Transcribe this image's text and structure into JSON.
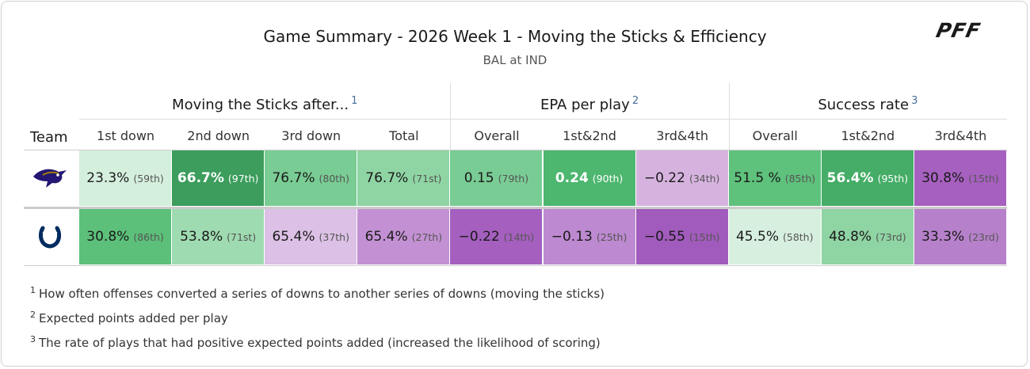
{
  "header": {
    "title": "Game Summary - 2026 Week 1 - Moving the Sticks & Efficiency",
    "subtitle": "BAL at IND",
    "logo": "PFF"
  },
  "table": {
    "team_header": "Team",
    "groups": [
      {
        "label": "Moving the Sticks after...",
        "note": "1",
        "columns": [
          "1st down",
          "2nd down",
          "3rd down",
          "Total"
        ]
      },
      {
        "label": "EPA per play",
        "note": "2",
        "columns": [
          "Overall",
          "1st&2nd",
          "3rd&4th"
        ]
      },
      {
        "label": "Success rate",
        "note": "3",
        "columns": [
          "Overall",
          "1st&2nd",
          "3rd&4th"
        ]
      }
    ],
    "rows": [
      {
        "cells": [
          {
            "value": "23.3%",
            "rank": "(59th)",
            "color": "#d5efdd"
          },
          {
            "value": "66.7%",
            "rank": "(97th)",
            "color": "#3c9d5d",
            "text_color": "#ffffff"
          },
          {
            "value": "76.7%",
            "rank": "(80th)",
            "color": "#79cc94"
          },
          {
            "value": "76.7%",
            "rank": "(71st)",
            "color": "#8fd5a4"
          },
          {
            "value": "0.15",
            "rank": "(79th)",
            "color": "#79cc94"
          },
          {
            "value": "0.24",
            "rank": "(90th)",
            "color": "#4db66f",
            "text_color": "#ffffff"
          },
          {
            "value": "−0.22",
            "rank": "(34th)",
            "color": "#d6b3df"
          },
          {
            "value": "51.5 %",
            "rank": "(85th)",
            "color": "#5ec17c"
          },
          {
            "value": "56.4%",
            "rank": "(95th)",
            "color": "#45ad67",
            "text_color": "#ffffff"
          },
          {
            "value": "30.8%",
            "rank": "(15th)",
            "color": "#a660bf"
          }
        ]
      },
      {
        "cells": [
          {
            "value": "30.8%",
            "rank": "(86th)",
            "color": "#5cc07a"
          },
          {
            "value": "53.8%",
            "rank": "(71st)",
            "color": "#9fdbb1"
          },
          {
            "value": "65.4%",
            "rank": "(37th)",
            "color": "#dcc0e5"
          },
          {
            "value": "65.4%",
            "rank": "(27th)",
            "color": "#c391d3"
          },
          {
            "value": "−0.22",
            "rank": "(14th)",
            "color": "#a55fbf"
          },
          {
            "value": "−0.13",
            "rank": "(25th)",
            "color": "#bd89d0"
          },
          {
            "value": "−0.55",
            "rank": "(15th)",
            "color": "#a15bbc"
          },
          {
            "value": "45.5%",
            "rank": "(58th)",
            "color": "#d7efdf"
          },
          {
            "value": "48.8%",
            "rank": "(73rd)",
            "color": "#8fd4a3"
          },
          {
            "value": "33.3%",
            "rank": "(23rd)",
            "color": "#b680ca"
          }
        ]
      }
    ]
  },
  "footnotes": [
    {
      "marker": "1",
      "text": "How often offenses converted a series of downs to another series of downs (moving the sticks)"
    },
    {
      "marker": "2",
      "text": "Expected points added per play"
    },
    {
      "marker": "3",
      "text": "The rate of plays that had positive expected points added (increased the likelihood of scoring)"
    }
  ]
}
